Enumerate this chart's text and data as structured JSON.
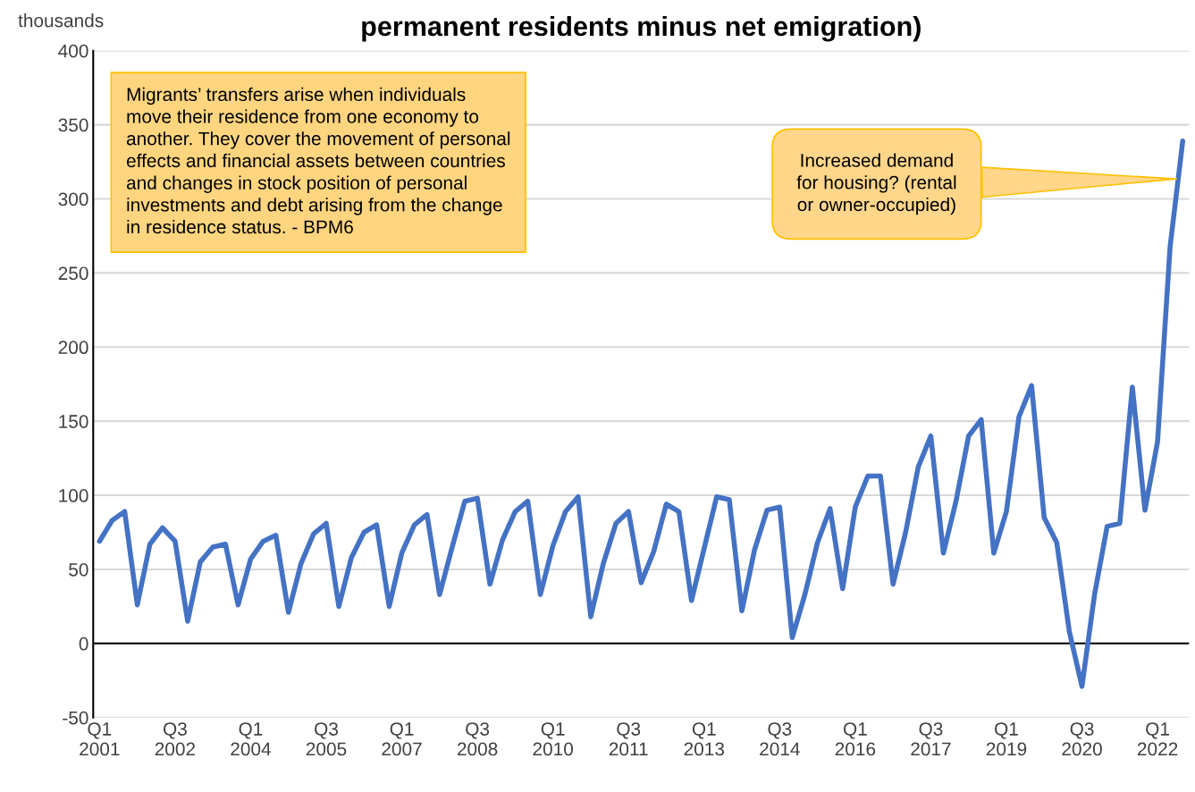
{
  "chart_data": {
    "type": "line",
    "title": "permanent residents minus net emigration)",
    "ylabel": "thousands",
    "categories": [
      "Q1\n2001",
      null,
      null,
      null,
      null,
      null,
      "Q3\n2002",
      null,
      null,
      null,
      null,
      null,
      "Q1\n2004",
      null,
      null,
      null,
      null,
      null,
      "Q3\n2005",
      null,
      null,
      null,
      null,
      null,
      "Q1\n2007",
      null,
      null,
      null,
      null,
      null,
      "Q3\n2008",
      null,
      null,
      null,
      null,
      null,
      "Q1\n2010",
      null,
      null,
      null,
      null,
      null,
      "Q3\n2011",
      null,
      null,
      null,
      null,
      null,
      "Q1\n2013",
      null,
      null,
      null,
      null,
      null,
      "Q3\n2014",
      null,
      null,
      null,
      null,
      null,
      "Q1\n2016",
      null,
      null,
      null,
      null,
      null,
      "Q3\n2017",
      null,
      null,
      null,
      null,
      null,
      "Q1\n2019",
      null,
      null,
      null,
      null,
      null,
      "Q3\n2020",
      null,
      null,
      null,
      null,
      null,
      "Q1\n2022",
      null,
      null
    ],
    "series": [
      {
        "color": "#4472c4",
        "values": [
          69,
          83,
          89,
          26,
          67,
          78,
          69,
          15,
          55,
          65,
          67,
          26,
          57,
          69,
          73,
          21,
          54,
          74,
          81,
          25,
          58,
          75,
          80,
          25,
          61,
          80,
          87,
          33,
          65,
          96,
          98,
          40,
          70,
          89,
          96,
          33,
          66,
          89,
          99,
          18,
          54,
          81,
          89,
          41,
          62,
          94,
          89,
          29,
          64,
          99,
          97,
          22,
          63,
          90,
          92,
          4,
          33,
          68,
          91,
          37,
          92,
          113,
          113,
          40,
          75,
          119,
          140,
          61,
          96,
          140,
          151,
          61,
          89,
          153,
          174,
          85,
          68,
          8,
          -29,
          33,
          79,
          81,
          173,
          90,
          136,
          268,
          339
        ]
      }
    ],
    "ylim": [
      -50,
      400
    ],
    "yticks": [
      -50,
      0,
      50,
      100,
      150,
      200,
      250,
      300,
      350,
      400
    ],
    "grid": "y",
    "legend": false,
    "marker": "none",
    "line_style": "solid",
    "ref_lines": [
      {
        "axis": "y",
        "value": 0,
        "color": "#000000"
      }
    ],
    "annotations": [
      "Migrants’ transfers arise when individuals\nmove their residence from one economy to\nanother. They cover the movement of personal\neffects and financial assets between countries\nand changes in stock position of personal\ninvestments and debt arising from the change\nin residence status. - BPM6",
      "Increased demand\nfor housing? (rental\nor owner-occupied)"
    ]
  }
}
